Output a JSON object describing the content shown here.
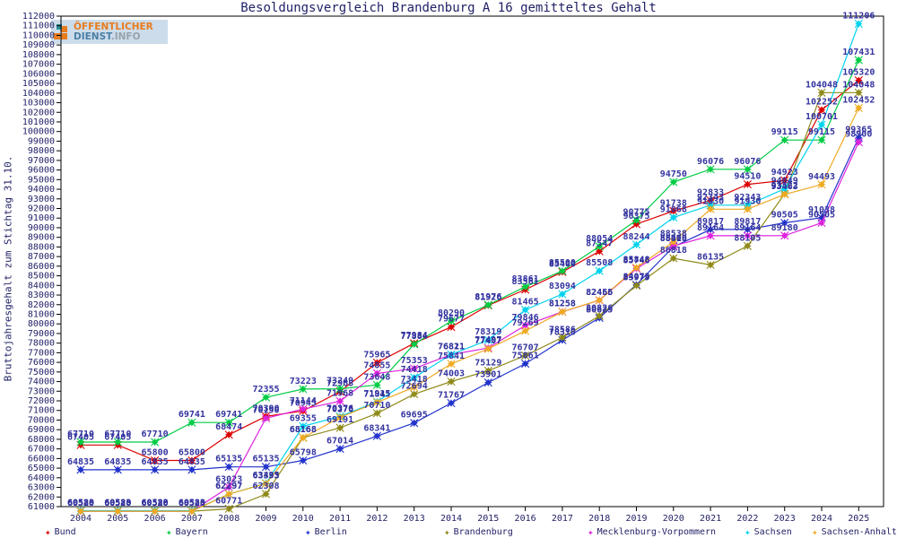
{
  "title": "Besoldungsvergleich Brandenburg A 16 gemitteltes Gehalt",
  "logo": {
    "line1": "ÖFFENTLICHER",
    "line2_a": "DIENST",
    "line2_b": ".INFO"
  },
  "y_axis_label": "Bruttojahresgehalt zum Stichtag 31.10.",
  "chart_data": {
    "type": "line",
    "x": [
      2004,
      2005,
      2006,
      2007,
      2008,
      2009,
      2010,
      2011,
      2012,
      2013,
      2014,
      2015,
      2016,
      2017,
      2018,
      2019,
      2020,
      2021,
      2022,
      2023,
      2024,
      2025
    ],
    "xlabel": "",
    "ylabel": "Bruttojahresgehalt zum Stichtag 31.10.",
    "ylim": [
      61000,
      112000
    ],
    "ytick_step": 1000,
    "grid": false,
    "legend_position": "bottom",
    "point_labels": true,
    "label_color": "#3333a0",
    "axis_color": "#1f1f66",
    "series": [
      {
        "name": "Bund",
        "color": "#dd0000",
        "values": [
          67405,
          67405,
          65800,
          65800,
          68474,
          70390,
          70945,
          72968,
          75965,
          77984,
          79677,
          81926,
          83561,
          85400,
          87547,
          90375,
          91738,
          92833,
          94510,
          94923,
          102252,
          105320
        ]
      },
      {
        "name": "Bayern",
        "color": "#00cc44",
        "values": [
          67710,
          67710,
          67710,
          69741,
          69741,
          72355,
          73223,
          73249,
          73648,
          77884,
          80290,
          81976,
          83861,
          85500,
          88054,
          90775,
          94750,
          96076,
          96076,
          99115,
          99115,
          107431
        ]
      },
      {
        "name": "Berlin",
        "color": "#2233cc",
        "values": [
          64835,
          64835,
          64835,
          64835,
          65135,
          65135,
          65798,
          67014,
          68341,
          69695,
          71767,
          73901,
          75861,
          78310,
          80625,
          84073,
          88018,
          89817,
          89817,
          90505,
          91038,
          99365
        ]
      },
      {
        "name": "Brandenburg",
        "color": "#8f8a1a",
        "values": [
          60520,
          60520,
          60520,
          60520,
          60771,
          62308,
          68168,
          69191,
          70710,
          72694,
          74003,
          75129,
          76707,
          78586,
          80826,
          83979,
          86818,
          86135,
          88105,
          93522,
          104048,
          104048
        ]
      },
      {
        "name": "Mecklenburg-Vorpommern",
        "color": "#dd22dd",
        "values": [
          60520,
          60520,
          60520,
          60520,
          63023,
          70190,
          71144,
          71968,
          74855,
          75353,
          76811,
          77497,
          79846,
          81258,
          82456,
          85746,
          88100,
          89164,
          89164,
          89180,
          90505,
          98900
        ]
      },
      {
        "name": "Sachsen",
        "color": "#00d2ee",
        "values": [
          60583,
          60583,
          60583,
          60583,
          62297,
          63435,
          69355,
          70376,
          71915,
          74418,
          76821,
          78319,
          81465,
          83094,
          85508,
          88244,
          91068,
          92343,
          92343,
          94049,
          100701,
          111206
        ]
      },
      {
        "name": "Sachsen-Anhalt",
        "color": "#eeaa22",
        "values": [
          60520,
          60520,
          60520,
          60520,
          62297,
          63393,
          68168,
          70276,
          71845,
          73418,
          75841,
          77407,
          79269,
          81258,
          82465,
          85848,
          88538,
          91930,
          91930,
          93463,
          94493,
          102452
        ]
      }
    ]
  },
  "legend_items": [
    "Bund",
    "Bayern",
    "Berlin",
    "Brandenburg",
    "Mecklenburg-Vorpommern",
    "Sachsen",
    "Sachsen-Anhalt"
  ]
}
